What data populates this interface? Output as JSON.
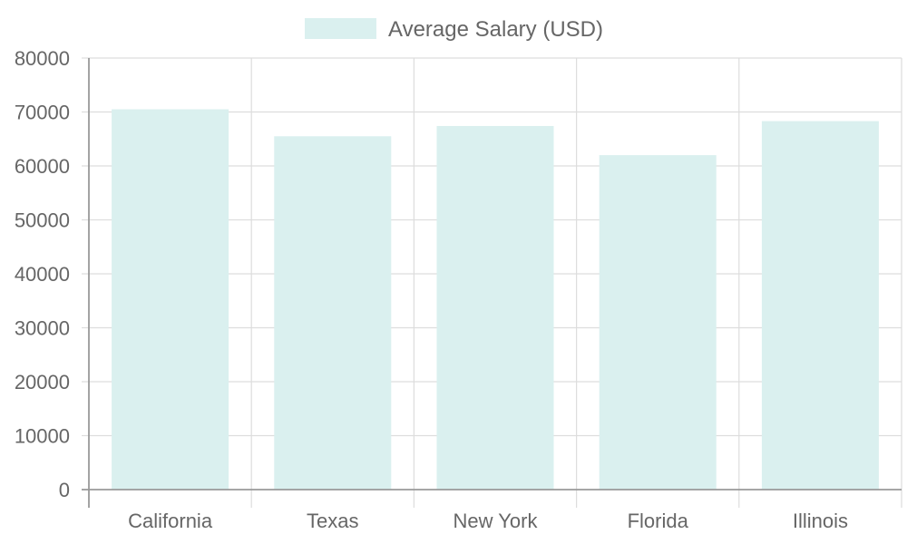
{
  "chart_data": {
    "type": "bar",
    "categories": [
      "California",
      "Texas",
      "New York",
      "Florida",
      "Illinois"
    ],
    "series": [
      {
        "name": "Average Salary (USD)",
        "values": [
          70500,
          65500,
          67400,
          62000,
          68300
        ],
        "color": "#daf0ef"
      }
    ],
    "ylim": [
      0,
      80000
    ],
    "yticks": [
      0,
      10000,
      20000,
      30000,
      40000,
      50000,
      60000,
      70000,
      80000
    ],
    "grid": true,
    "legend_position": "top-center",
    "axis_color": "#999999",
    "grid_color": "#dddddd",
    "text_color": "#666666"
  }
}
